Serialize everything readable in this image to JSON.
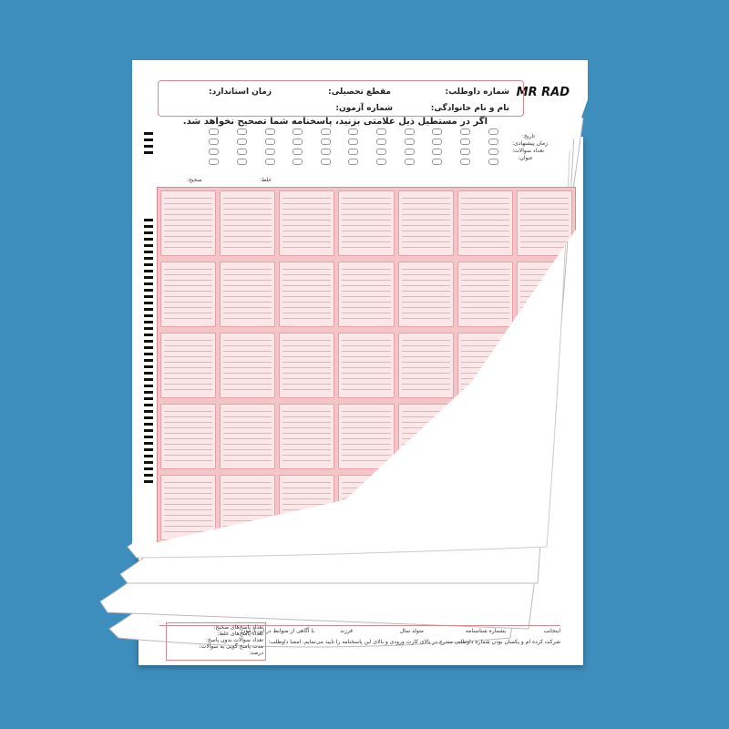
{
  "brand": {
    "logo_text": "MR RAD"
  },
  "header": {
    "candidate_number": "شماره داوطلب:",
    "education_level": "مقطع تحصیلی:",
    "standard_time": "زمان استاندارد:",
    "full_name": "نام و نام خانوادگی:",
    "exam_number": "شماره آزمون:",
    "warning": "اگر در مستطیل ذیل علامتی بزنید، پاسخنامه شما تصحیح نخواهد شد."
  },
  "side_fields": {
    "date": "تاریخ:",
    "duration": "زمان پیشنهادی:",
    "count": "تعداد سوالات:",
    "title": "عنوان:"
  },
  "legend": {
    "correct": "صحیح:",
    "wrong": "غلط:"
  },
  "bottom_sheet": {
    "fields": [
      "اینجانب",
      "بشماره شناسنامه",
      "متولد سال",
      "فرزند",
      "با آگاهی از ضوابط در این آزمون"
    ],
    "statement": "شرکت کرده ام و یکسان بودن شماره داوطلبی مندرج در بالای کارت ورودی و بالای این پاسخنامه را تایید می‌نمایم. امضا داوطلب:",
    "stats": [
      "تعداد پاسخ‌های صحیح:",
      "تعداد پاسخ‌های غلط:",
      "تعداد سوالات بدون پاسخ:",
      "مدت پاسخ گویی به سوالات:",
      "درصد:"
    ]
  },
  "colors": {
    "background": "#3d8dbd",
    "grid_pink": "#f3c4c8",
    "grid_border": "#d9888f"
  }
}
